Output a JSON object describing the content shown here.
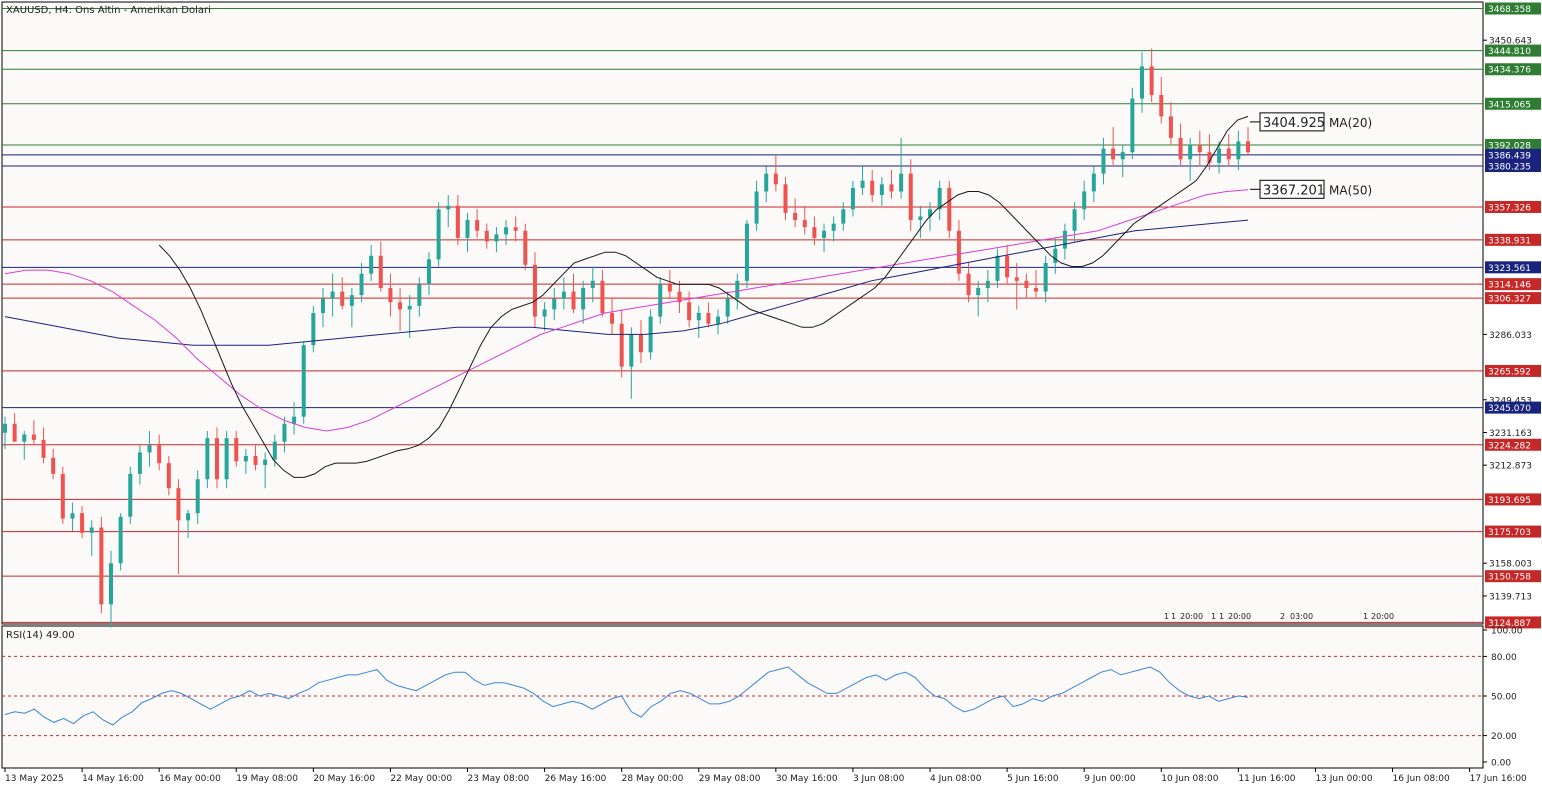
{
  "header": {
    "title": "XAUUSD, H4:  Ons Altin - Amerikan Dolari",
    "rsi_label": "RSI(14) 49.00"
  },
  "colors": {
    "background": "#fcf9f9",
    "bull": "#26a69a",
    "bear": "#ef5350",
    "ma20": "#1a1a1a",
    "ma50": "#d63fd6",
    "ma100": "#1a237e",
    "support_line": "#c62828",
    "resistance_line": "#2e7d32",
    "pivot_line": "#1a237e",
    "rsi_line": "#3b86d8"
  },
  "chart_data": [
    {
      "type": "candlestick",
      "symbol": "XAUUSD",
      "timeframe": "H4",
      "ylim": [
        3124,
        3472
      ],
      "y_ticks": [
        3450.643,
        3286.033,
        3249.453,
        3231.163,
        3212.873,
        3158.003,
        3139.713
      ],
      "x_tick_labels": [
        "13 May 2025",
        "14 May 16:00",
        "16 May 00:00",
        "19 May 08:00",
        "20 May 16:00",
        "22 May 00:00",
        "23 May 08:00",
        "26 May 16:00",
        "28 May 00:00",
        "29 May 08:00",
        "30 May 16:00",
        "3 Jun 08:00",
        "4 Jun 08:00",
        "5 Jun 16:00",
        "9 Jun 00:00",
        "10 Jun 08:00",
        "11 Jun 16:00",
        "13 Jun 00:00",
        "16 Jun 08:00",
        "17 Jun 16:00"
      ],
      "x_tick_bars": [
        0,
        8,
        16,
        24,
        32,
        40,
        48,
        56,
        64,
        72,
        80,
        88,
        96,
        104,
        112,
        120,
        128,
        136,
        144,
        152
      ],
      "levels": [
        {
          "value": 3468.358,
          "label": "3468.358",
          "color": "#2e7d32"
        },
        {
          "value": 3444.81,
          "label": "3444.810",
          "color": "#2e7d32"
        },
        {
          "value": 3434.376,
          "label": "3434.376",
          "color": "#2e7d32"
        },
        {
          "value": 3415.065,
          "label": "3415.065",
          "color": "#2e7d32"
        },
        {
          "value": 3392.028,
          "label": "3392.028",
          "color": "#2e7d32"
        },
        {
          "value": 3386.439,
          "label": "3386.439",
          "color": "#1a237e"
        },
        {
          "value": 3380.235,
          "label": "3380.235",
          "color": "#1a237e"
        },
        {
          "value": 3357.326,
          "label": "3357.326",
          "color": "#c62828"
        },
        {
          "value": 3338.931,
          "label": "3338.931",
          "color": "#c62828"
        },
        {
          "value": 3323.561,
          "label": "3323.561",
          "color": "#1a237e"
        },
        {
          "value": 3314.146,
          "label": "3314.146",
          "color": "#c62828"
        },
        {
          "value": 3306.327,
          "label": "3306.327",
          "color": "#c62828"
        },
        {
          "value": 3265.592,
          "label": "3265.592",
          "color": "#c62828"
        },
        {
          "value": 3245.07,
          "label": "3245.070",
          "color": "#1a237e"
        },
        {
          "value": 3224.282,
          "label": "3224.282",
          "color": "#c62828"
        },
        {
          "value": 3193.695,
          "label": "3193.695",
          "color": "#c62828"
        },
        {
          "value": 3175.703,
          "label": "3175.703",
          "color": "#c62828"
        },
        {
          "value": 3150.758,
          "label": "3150.758",
          "color": "#c62828"
        },
        {
          "value": 3124.887,
          "label": "3124.887",
          "color": "#c62828"
        }
      ],
      "ma_labels": [
        {
          "value": 3404.925,
          "text": "3404.925",
          "name": "MA(20)"
        },
        {
          "value": 3367.201,
          "text": "3367.201",
          "name": "MA(50)"
        }
      ],
      "ohlc": [
        [
          3231,
          3240,
          3222,
          3236
        ],
        [
          3236,
          3242,
          3228,
          3226
        ],
        [
          3226,
          3232,
          3216,
          3230
        ],
        [
          3230,
          3238,
          3224,
          3227
        ],
        [
          3227,
          3234,
          3214,
          3217
        ],
        [
          3217,
          3222,
          3205,
          3208
        ],
        [
          3208,
          3212,
          3180,
          3183
        ],
        [
          3183,
          3192,
          3176,
          3186
        ],
        [
          3186,
          3190,
          3172,
          3175
        ],
        [
          3175,
          3182,
          3162,
          3178
        ],
        [
          3178,
          3184,
          3130,
          3135
        ],
        [
          3135,
          3165,
          3122,
          3158
        ],
        [
          3158,
          3186,
          3154,
          3184
        ],
        [
          3184,
          3212,
          3180,
          3208
        ],
        [
          3208,
          3224,
          3202,
          3220
        ],
        [
          3220,
          3232,
          3212,
          3224
        ],
        [
          3224,
          3230,
          3210,
          3214
        ],
        [
          3214,
          3218,
          3196,
          3200
        ],
        [
          3200,
          3205,
          3152,
          3182
        ],
        [
          3182,
          3188,
          3172,
          3186
        ],
        [
          3186,
          3210,
          3180,
          3205
        ],
        [
          3205,
          3232,
          3200,
          3228
        ],
        [
          3228,
          3234,
          3200,
          3205
        ],
        [
          3205,
          3232,
          3200,
          3228
        ],
        [
          3228,
          3232,
          3212,
          3215
        ],
        [
          3215,
          3222,
          3208,
          3218
        ],
        [
          3218,
          3224,
          3210,
          3213
        ],
        [
          3213,
          3220,
          3200,
          3216
        ],
        [
          3216,
          3230,
          3212,
          3226
        ],
        [
          3226,
          3240,
          3220,
          3236
        ],
        [
          3236,
          3248,
          3230,
          3240
        ],
        [
          3240,
          3282,
          3236,
          3280
        ],
        [
          3280,
          3302,
          3276,
          3298
        ],
        [
          3298,
          3312,
          3290,
          3306
        ],
        [
          3306,
          3320,
          3296,
          3310
        ],
        [
          3310,
          3318,
          3300,
          3302
        ],
        [
          3302,
          3312,
          3290,
          3308
        ],
        [
          3308,
          3326,
          3304,
          3320
        ],
        [
          3320,
          3336,
          3316,
          3330
        ],
        [
          3330,
          3338,
          3310,
          3312
        ],
        [
          3312,
          3320,
          3296,
          3304
        ],
        [
          3304,
          3312,
          3288,
          3300
        ],
        [
          3300,
          3308,
          3284,
          3302
        ],
        [
          3302,
          3318,
          3296,
          3314
        ],
        [
          3314,
          3332,
          3308,
          3328
        ],
        [
          3328,
          3360,
          3324,
          3356
        ],
        [
          3356,
          3364,
          3346,
          3358
        ],
        [
          3358,
          3364,
          3336,
          3340
        ],
        [
          3340,
          3354,
          3332,
          3350
        ],
        [
          3350,
          3356,
          3340,
          3344
        ],
        [
          3344,
          3348,
          3334,
          3338
        ],
        [
          3338,
          3346,
          3332,
          3342
        ],
        [
          3342,
          3350,
          3336,
          3346
        ],
        [
          3346,
          3352,
          3338,
          3344
        ],
        [
          3344,
          3348,
          3322,
          3325
        ],
        [
          3325,
          3332,
          3290,
          3296
        ],
        [
          3296,
          3304,
          3288,
          3300
        ],
        [
          3300,
          3312,
          3294,
          3306
        ],
        [
          3306,
          3318,
          3300,
          3310
        ],
        [
          3310,
          3320,
          3298,
          3300
        ],
        [
          3300,
          3316,
          3292,
          3312
        ],
        [
          3312,
          3324,
          3304,
          3316
        ],
        [
          3316,
          3322,
          3296,
          3298
        ],
        [
          3298,
          3306,
          3286,
          3292
        ],
        [
          3292,
          3300,
          3262,
          3268
        ],
        [
          3268,
          3290,
          3250,
          3286
        ],
        [
          3286,
          3294,
          3270,
          3276
        ],
        [
          3276,
          3300,
          3272,
          3296
        ],
        [
          3296,
          3318,
          3292,
          3314
        ],
        [
          3314,
          3322,
          3306,
          3310
        ],
        [
          3310,
          3316,
          3298,
          3304
        ],
        [
          3304,
          3310,
          3290,
          3294
        ],
        [
          3294,
          3302,
          3284,
          3298
        ],
        [
          3298,
          3304,
          3290,
          3292
        ],
        [
          3292,
          3300,
          3286,
          3296
        ],
        [
          3296,
          3310,
          3292,
          3306
        ],
        [
          3306,
          3320,
          3300,
          3316
        ],
        [
          3316,
          3350,
          3312,
          3348
        ],
        [
          3348,
          3372,
          3344,
          3366
        ],
        [
          3366,
          3380,
          3360,
          3376
        ],
        [
          3376,
          3386,
          3366,
          3370
        ],
        [
          3370,
          3374,
          3350,
          3354
        ],
        [
          3354,
          3362,
          3346,
          3350
        ],
        [
          3350,
          3358,
          3342,
          3346
        ],
        [
          3346,
          3352,
          3336,
          3340
        ],
        [
          3340,
          3348,
          3332,
          3344
        ],
        [
          3344,
          3352,
          3338,
          3348
        ],
        [
          3348,
          3360,
          3344,
          3356
        ],
        [
          3356,
          3372,
          3352,
          3368
        ],
        [
          3368,
          3380,
          3364,
          3372
        ],
        [
          3372,
          3378,
          3360,
          3364
        ],
        [
          3364,
          3374,
          3358,
          3370
        ],
        [
          3370,
          3378,
          3362,
          3366
        ],
        [
          3366,
          3396,
          3362,
          3376
        ],
        [
          3376,
          3384,
          3344,
          3350
        ],
        [
          3350,
          3358,
          3340,
          3352
        ],
        [
          3352,
          3360,
          3344,
          3356
        ],
        [
          3356,
          3372,
          3350,
          3368
        ],
        [
          3368,
          3372,
          3340,
          3344
        ],
        [
          3344,
          3350,
          3316,
          3320
        ],
        [
          3320,
          3326,
          3304,
          3308
        ],
        [
          3308,
          3316,
          3296,
          3312
        ],
        [
          3312,
          3322,
          3304,
          3316
        ],
        [
          3316,
          3334,
          3312,
          3330
        ],
        [
          3330,
          3336,
          3314,
          3318
        ],
        [
          3318,
          3326,
          3300,
          3316
        ],
        [
          3316,
          3320,
          3306,
          3312
        ],
        [
          3312,
          3322,
          3306,
          3310
        ],
        [
          3310,
          3330,
          3304,
          3326
        ],
        [
          3326,
          3340,
          3320,
          3334
        ],
        [
          3334,
          3348,
          3328,
          3344
        ],
        [
          3344,
          3360,
          3338,
          3356
        ],
        [
          3356,
          3372,
          3350,
          3366
        ],
        [
          3366,
          3380,
          3360,
          3376
        ],
        [
          3376,
          3396,
          3370,
          3390
        ],
        [
          3390,
          3402,
          3380,
          3384
        ],
        [
          3384,
          3392,
          3374,
          3388
        ],
        [
          3388,
          3424,
          3384,
          3418
        ],
        [
          3418,
          3444,
          3410,
          3436
        ],
        [
          3436,
          3446,
          3416,
          3420
        ],
        [
          3420,
          3430,
          3404,
          3408
        ],
        [
          3408,
          3416,
          3392,
          3396
        ],
        [
          3396,
          3404,
          3380,
          3384
        ],
        [
          3384,
          3396,
          3372,
          3392
        ],
        [
          3392,
          3400,
          3380,
          3388
        ],
        [
          3388,
          3398,
          3378,
          3382
        ],
        [
          3382,
          3394,
          3376,
          3390
        ],
        [
          3390,
          3398,
          3380,
          3384
        ],
        [
          3384,
          3400,
          3378,
          3394
        ],
        [
          3394,
          3402,
          3386,
          3388
        ]
      ],
      "ma20": [
        3336,
        3330,
        3322,
        3312,
        3300,
        3286,
        3272,
        3258,
        3246,
        3236,
        3226,
        3216,
        3210,
        3206,
        3206,
        3208,
        3212,
        3214,
        3214,
        3214,
        3215,
        3217,
        3219,
        3221,
        3222,
        3224,
        3228,
        3234,
        3244,
        3256,
        3268,
        3280,
        3290,
        3296,
        3300,
        3302,
        3304,
        3308,
        3314,
        3320,
        3326,
        3328,
        3330,
        3332,
        3332,
        3330,
        3326,
        3322,
        3318,
        3316,
        3314,
        3314,
        3314,
        3314,
        3312,
        3308,
        3304,
        3300,
        3298,
        3296,
        3294,
        3292,
        3290,
        3290,
        3292,
        3296,
        3300,
        3304,
        3308,
        3312,
        3318,
        3326,
        3334,
        3342,
        3350,
        3356,
        3360,
        3364,
        3366,
        3366,
        3364,
        3360,
        3354,
        3348,
        3342,
        3336,
        3330,
        3326,
        3324,
        3324,
        3326,
        3330,
        3336,
        3342,
        3348,
        3352,
        3356,
        3360,
        3364,
        3368,
        3372,
        3380,
        3390,
        3400,
        3406,
        3408
      ],
      "ma20_start": 16,
      "ma50": [
        3320,
        3322,
        3322,
        3320,
        3316,
        3310,
        3302,
        3294,
        3284,
        3272,
        3262,
        3252,
        3244,
        3238,
        3234,
        3232,
        3234,
        3238,
        3244,
        3250,
        3256,
        3262,
        3268,
        3274,
        3280,
        3286,
        3290,
        3294,
        3298,
        3300,
        3302,
        3304,
        3306,
        3308,
        3310,
        3312,
        3314,
        3316,
        3318,
        3320,
        3322,
        3324,
        3326,
        3328,
        3330,
        3332,
        3334,
        3336,
        3338,
        3340,
        3342,
        3344,
        3348,
        3352,
        3356,
        3360,
        3364,
        3366,
        3367
      ],
      "ma50_start": 0,
      "ma100": [
        3296,
        3292,
        3288,
        3284,
        3282,
        3280,
        3280,
        3280,
        3282,
        3284,
        3286,
        3288,
        3290,
        3290,
        3290,
        3288,
        3286,
        3286,
        3288,
        3292,
        3298,
        3304,
        3310,
        3316,
        3320,
        3324,
        3328,
        3332,
        3336,
        3340,
        3344,
        3346,
        3348,
        3350
      ],
      "ma100_start": 0,
      "session_markers": [
        "1",
        "1",
        "20:00",
        "1",
        "1",
        "20:00",
        "2",
        "03:00",
        "1",
        "20:00"
      ]
    },
    {
      "type": "line",
      "name": "RSI(14)",
      "ylim": [
        0,
        100
      ],
      "y_ticks": [
        100,
        80,
        50,
        20,
        0
      ],
      "y_tick_labels": [
        "100.00",
        "80.00",
        "50.00",
        "20.00",
        "0.00"
      ],
      "reference_levels": [
        80,
        50,
        20
      ],
      "values": [
        36,
        38,
        37,
        40,
        34,
        30,
        33,
        29,
        35,
        38,
        32,
        28,
        34,
        38,
        45,
        48,
        52,
        54,
        52,
        48,
        44,
        40,
        44,
        48,
        50,
        54,
        50,
        52,
        50,
        48,
        52,
        55,
        60,
        62,
        64,
        66,
        66,
        68,
        70,
        62,
        58,
        56,
        54,
        58,
        62,
        66,
        68,
        68,
        62,
        58,
        60,
        60,
        58,
        56,
        52,
        46,
        42,
        44,
        46,
        44,
        40,
        44,
        48,
        50,
        38,
        34,
        42,
        46,
        52,
        54,
        52,
        48,
        44,
        44,
        46,
        50,
        56,
        62,
        68,
        70,
        72,
        66,
        60,
        56,
        52,
        52,
        56,
        60,
        64,
        66,
        62,
        66,
        68,
        64,
        56,
        50,
        48,
        42,
        38,
        40,
        44,
        48,
        50,
        42,
        44,
        48,
        46,
        50,
        52,
        56,
        60,
        64,
        68,
        70,
        66,
        68,
        70,
        72,
        68,
        60,
        54,
        50,
        48,
        50,
        46,
        48,
        50,
        49
      ],
      "current": 49.0
    }
  ]
}
